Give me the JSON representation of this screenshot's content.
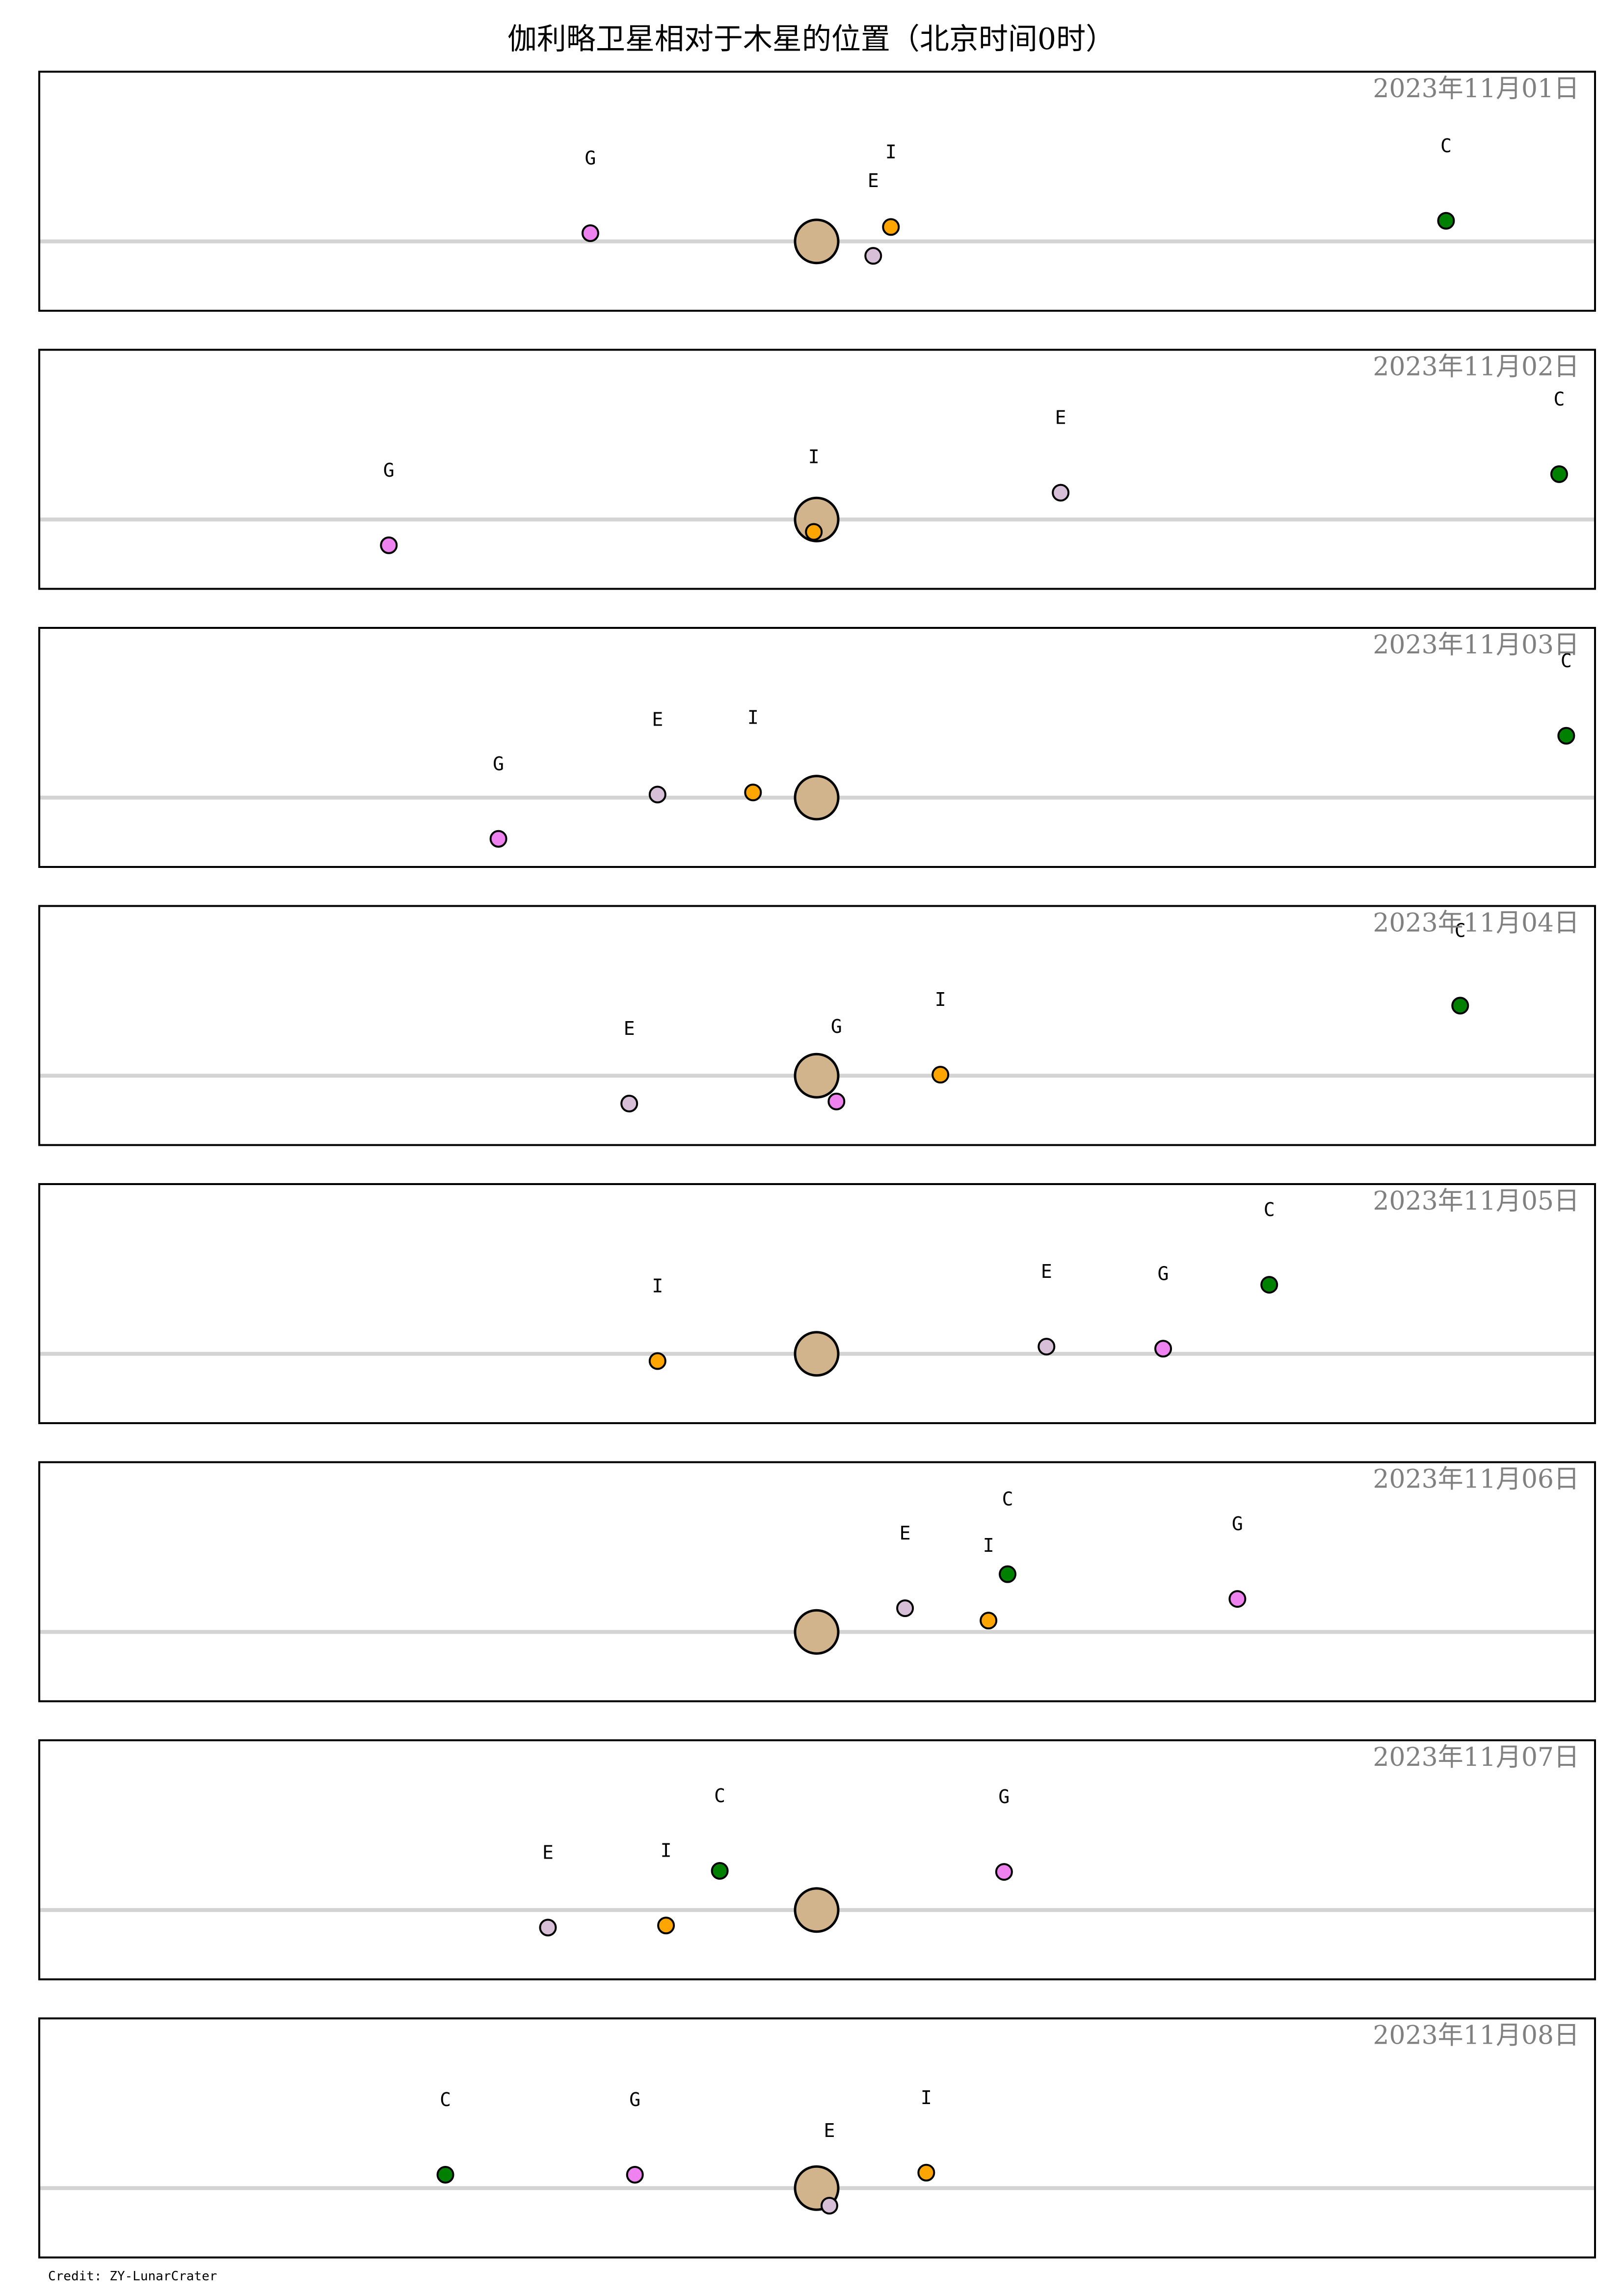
{
  "title": "伽利略卫星相对于木星的位置（北京时间0时）",
  "credit": "Credit: ZY-LunarCrater",
  "colors": {
    "jupiter": "#d2b48c",
    "I": "#ffa500",
    "E": "#d8bfd8",
    "G": "#ee82ee",
    "C": "#008000",
    "axis": "#d3d3d3",
    "date_text": "#808080"
  },
  "chart_data": {
    "type": "scatter",
    "xlim": [
      -11,
      11
    ],
    "ylim": [
      -1,
      1
    ],
    "grid": false,
    "legend": "none",
    "moon_names": [
      "I",
      "E",
      "G",
      "C"
    ],
    "panels": [
      {
        "date": "2023年11月01日",
        "moons": [
          {
            "name": "I",
            "x": 1.05,
            "y": 0.14
          },
          {
            "name": "E",
            "x": 0.8,
            "y": -0.14
          },
          {
            "name": "G",
            "x": -3.2,
            "y": 0.08
          },
          {
            "name": "C",
            "x": 8.9,
            "y": 0.2
          }
        ]
      },
      {
        "date": "2023年11月02日",
        "moons": [
          {
            "name": "I",
            "x": -0.04,
            "y": -0.12
          },
          {
            "name": "E",
            "x": 3.45,
            "y": 0.26
          },
          {
            "name": "G",
            "x": -6.05,
            "y": -0.25
          },
          {
            "name": "C",
            "x": 10.5,
            "y": 0.44
          }
        ]
      },
      {
        "date": "2023年11月03日",
        "moons": [
          {
            "name": "I",
            "x": -0.9,
            "y": 0.05
          },
          {
            "name": "E",
            "x": -2.25,
            "y": 0.03
          },
          {
            "name": "G",
            "x": -4.5,
            "y": -0.4
          },
          {
            "name": "C",
            "x": 10.6,
            "y": 0.6
          }
        ]
      },
      {
        "date": "2023年11月04日",
        "moons": [
          {
            "name": "I",
            "x": 1.75,
            "y": 0.01
          },
          {
            "name": "E",
            "x": -2.65,
            "y": -0.27
          },
          {
            "name": "G",
            "x": 0.28,
            "y": -0.25
          },
          {
            "name": "C",
            "x": 9.1,
            "y": 0.68
          }
        ]
      },
      {
        "date": "2023年11月05日",
        "moons": [
          {
            "name": "I",
            "x": -2.25,
            "y": -0.07
          },
          {
            "name": "E",
            "x": 3.25,
            "y": 0.07
          },
          {
            "name": "G",
            "x": 4.9,
            "y": 0.05
          },
          {
            "name": "C",
            "x": 6.4,
            "y": 0.67
          }
        ]
      },
      {
        "date": "2023年11月06日",
        "moons": [
          {
            "name": "I",
            "x": 2.43,
            "y": 0.11
          },
          {
            "name": "E",
            "x": 1.25,
            "y": 0.23
          },
          {
            "name": "G",
            "x": 5.95,
            "y": 0.32
          },
          {
            "name": "C",
            "x": 2.7,
            "y": 0.56
          }
        ]
      },
      {
        "date": "2023年11月07日",
        "moons": [
          {
            "name": "I",
            "x": -2.13,
            "y": -0.15
          },
          {
            "name": "E",
            "x": -3.8,
            "y": -0.17
          },
          {
            "name": "G",
            "x": 2.65,
            "y": 0.37
          },
          {
            "name": "C",
            "x": -1.37,
            "y": 0.38
          }
        ]
      },
      {
        "date": "2023年11月08日",
        "moons": [
          {
            "name": "I",
            "x": 1.55,
            "y": 0.15
          },
          {
            "name": "E",
            "x": 0.18,
            "y": -0.17
          },
          {
            "name": "G",
            "x": -2.57,
            "y": 0.13
          },
          {
            "name": "C",
            "x": -5.25,
            "y": 0.13
          }
        ]
      }
    ]
  }
}
